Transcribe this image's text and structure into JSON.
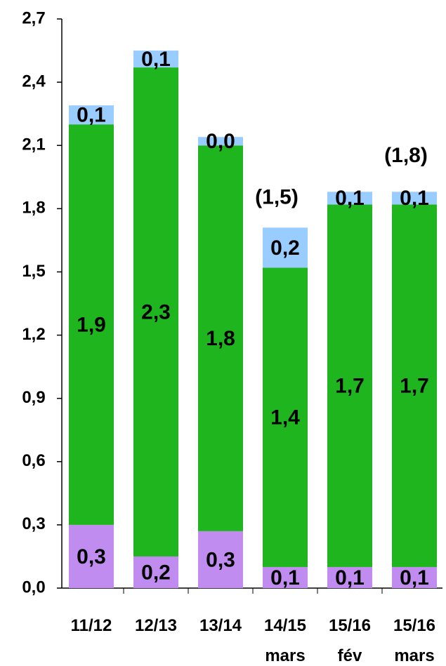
{
  "chart_data": {
    "type": "stacked_bar",
    "categories": [
      "11/12",
      "12/13",
      "13/14",
      "14/15 mars",
      "15/16 fév",
      "15/16 mars"
    ],
    "series": [
      {
        "name": "purple",
        "color": "#c08cf0",
        "values": [
          0.3,
          0.15,
          0.27,
          0.1,
          0.1,
          0.1
        ],
        "value_labels": [
          "0,3",
          "0,2",
          "0,3",
          "0,1",
          "0,1",
          "0,1"
        ]
      },
      {
        "name": "green",
        "color": "#1fb51f",
        "values": [
          1.9,
          2.32,
          1.83,
          1.42,
          1.72,
          1.72
        ],
        "value_labels": [
          "1,9",
          "2,3",
          "1,8",
          "1,4",
          "1,7",
          "1,7"
        ]
      },
      {
        "name": "blue",
        "color": "#99ccff",
        "values": [
          0.09,
          0.08,
          0.04,
          0.19,
          0.06,
          0.06
        ],
        "value_labels": [
          "0,1",
          "0,1",
          "0,0",
          "0,2",
          "0,1",
          "0,1"
        ]
      }
    ],
    "ylim": [
      0,
      2.7
    ],
    "yticks": [
      {
        "value": 0,
        "label": "0,0"
      },
      {
        "value": 0.3,
        "label": "0,3"
      },
      {
        "value": 0.6,
        "label": "0,6"
      },
      {
        "value": 0.9,
        "label": "0,9"
      },
      {
        "value": 1.2,
        "label": "1,2"
      },
      {
        "value": 1.5,
        "label": "1,5"
      },
      {
        "value": 1.8,
        "label": "1,8"
      },
      {
        "value": 2.1,
        "label": "2,1"
      },
      {
        "value": 2.4,
        "label": "2,4"
      },
      {
        "value": 2.7,
        "label": "2,7"
      }
    ],
    "annotations": [
      {
        "text": "(1,5)",
        "category": "14/15 mars"
      },
      {
        "text": "(1,8)",
        "category": "15/16 mars"
      }
    ]
  }
}
